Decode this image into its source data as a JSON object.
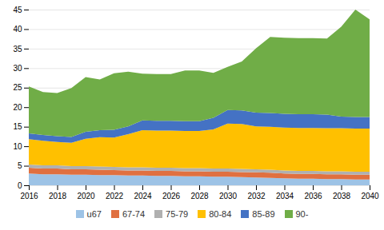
{
  "chart_data": {
    "type": "area",
    "stacked": true,
    "x": [
      2016,
      2017,
      2018,
      2019,
      2020,
      2021,
      2022,
      2023,
      2024,
      2025,
      2026,
      2027,
      2028,
      2029,
      2030,
      2031,
      2032,
      2033,
      2034,
      2035,
      2036,
      2037,
      2038,
      2039,
      2040
    ],
    "series": [
      {
        "name": "u67",
        "color": "#9dc3e6",
        "values": [
          3.0,
          2.8,
          2.8,
          2.7,
          2.7,
          2.6,
          2.6,
          2.5,
          2.5,
          2.4,
          2.4,
          2.3,
          2.3,
          2.2,
          2.2,
          2.1,
          2.0,
          1.9,
          1.8,
          1.7,
          1.7,
          1.6,
          1.6,
          1.5,
          1.5
        ]
      },
      {
        "name": "67-74",
        "color": "#e07040",
        "values": [
          1.5,
          1.5,
          1.5,
          1.4,
          1.4,
          1.4,
          1.3,
          1.3,
          1.3,
          1.3,
          1.3,
          1.3,
          1.3,
          1.3,
          1.3,
          1.3,
          1.3,
          1.3,
          1.2,
          1.2,
          1.2,
          1.2,
          1.2,
          1.2,
          1.2
        ]
      },
      {
        "name": "75-79",
        "color": "#b0b0b0",
        "values": [
          0.8,
          0.8,
          0.8,
          0.8,
          0.8,
          0.8,
          0.8,
          0.8,
          0.8,
          0.8,
          0.8,
          0.8,
          0.8,
          0.8,
          0.8,
          0.8,
          0.8,
          0.8,
          0.8,
          0.8,
          0.8,
          0.8,
          0.8,
          0.8,
          0.8
        ]
      },
      {
        "name": "80-84",
        "color": "#ffc000",
        "values": [
          6.5,
          6.3,
          6.0,
          6.0,
          7.0,
          7.5,
          7.5,
          8.5,
          9.5,
          9.5,
          9.5,
          9.5,
          9.5,
          10.0,
          11.5,
          11.5,
          11.0,
          11.0,
          11.0,
          11.0,
          11.0,
          11.0,
          11.0,
          11.0,
          11.0
        ]
      },
      {
        "name": "85-89",
        "color": "#4472c4",
        "values": [
          1.5,
          1.5,
          1.5,
          1.5,
          1.8,
          1.8,
          2.0,
          2.0,
          2.5,
          2.5,
          2.5,
          2.5,
          2.5,
          3.0,
          3.5,
          3.5,
          3.5,
          3.5,
          3.5,
          3.5,
          3.5,
          3.5,
          3.0,
          3.0,
          3.0
        ]
      },
      {
        "name": "90-",
        "color": "#70ad47",
        "values": [
          12.0,
          11.0,
          11.0,
          12.5,
          14.0,
          13.0,
          14.5,
          14.0,
          12.0,
          12.0,
          12.0,
          13.0,
          13.0,
          11.5,
          11.0,
          12.5,
          16.5,
          19.5,
          19.5,
          19.5,
          19.5,
          19.5,
          23.0,
          27.5,
          25.0
        ]
      }
    ],
    "xlim": [
      2016,
      2040
    ],
    "xticks": [
      2016,
      2018,
      2020,
      2022,
      2024,
      2026,
      2028,
      2030,
      2032,
      2034,
      2036,
      2038,
      2040
    ],
    "ylim": [
      0,
      45
    ],
    "yticks": [
      0,
      5,
      10,
      15,
      20,
      25,
      30,
      35,
      40,
      45
    ],
    "grid": true,
    "legend": "bottom"
  }
}
